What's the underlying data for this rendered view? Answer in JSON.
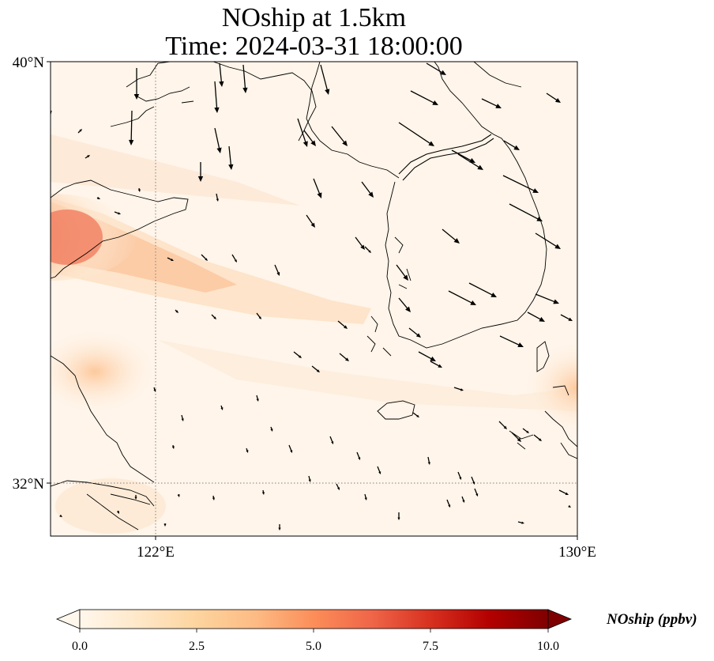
{
  "title": {
    "line1": "NOship at 1.5km",
    "line2": "Time: 2024-03-31 18:00:00"
  },
  "map": {
    "lon_range": [
      120,
      130
    ],
    "lat_range": [
      31,
      40
    ],
    "gridlines": {
      "lons": [
        122
      ],
      "lats": [
        32
      ]
    },
    "ticks": {
      "lat": [
        {
          "value": 40,
          "label": "40°N"
        },
        {
          "value": 32,
          "label": "32°N"
        }
      ],
      "lon": [
        {
          "value": 122,
          "label": "122°E"
        },
        {
          "value": 130,
          "label": "130°E"
        }
      ]
    },
    "field_name": "NOship",
    "field_units": "ppbv",
    "plume_regions": [
      {
        "desc": "Shandong-coast plume band",
        "lon": [
          120.0,
          125.5
        ],
        "lat": [
          34.3,
          37.0
        ],
        "max_value": 6.0
      },
      {
        "desc": "Jiangsu coast",
        "lon": [
          120.0,
          122.0
        ],
        "lat": [
          32.5,
          34.3
        ],
        "max_value": 2.5
      },
      {
        "desc": "Korea Strait",
        "lon": [
          128.5,
          130.0
        ],
        "lat": [
          32.5,
          34.0
        ],
        "max_value": 2.0
      }
    ],
    "wind_vectors": "present",
    "coastlines": "present",
    "colors": {
      "coast": "#000000",
      "grid": "#808080",
      "arrow": "#000000"
    }
  },
  "colorbar": {
    "min": 0,
    "max": 10,
    "cmap": "OrRd",
    "extend": "both",
    "ticks": [
      "0.0",
      "2.5",
      "5.0",
      "7.5",
      "10.0"
    ],
    "label": "NOship (ppbv)",
    "stops": [
      "#fff7ec",
      "#fee8c8",
      "#fdd49e",
      "#fdbb84",
      "#fc8d59",
      "#ef6548",
      "#d7301f",
      "#b30000",
      "#7f0000"
    ]
  }
}
